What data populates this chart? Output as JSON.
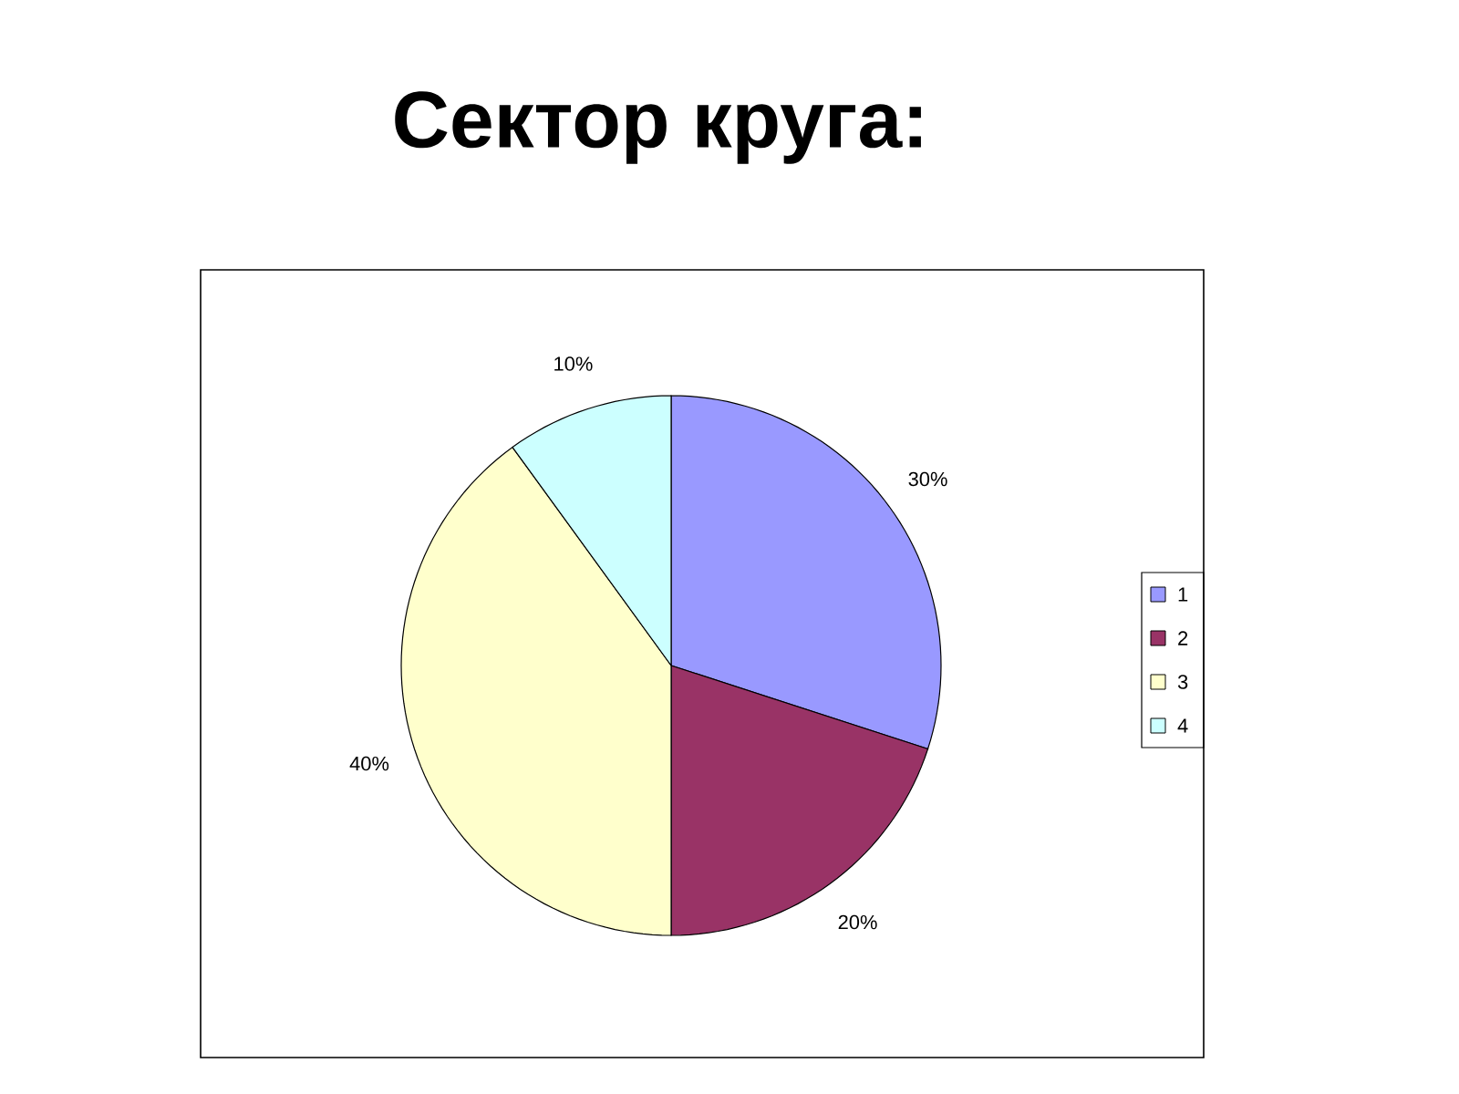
{
  "chart_data": {
    "type": "pie",
    "title": "Сектор круга:",
    "categories": [
      "1",
      "2",
      "3",
      "4"
    ],
    "values": [
      30,
      20,
      40,
      10
    ],
    "colors": [
      "#9999ff",
      "#993366",
      "#ffffcc",
      "#ccffff"
    ],
    "value_labels": [
      "30%",
      "20%",
      "40%",
      "10%"
    ],
    "legend": "right"
  }
}
